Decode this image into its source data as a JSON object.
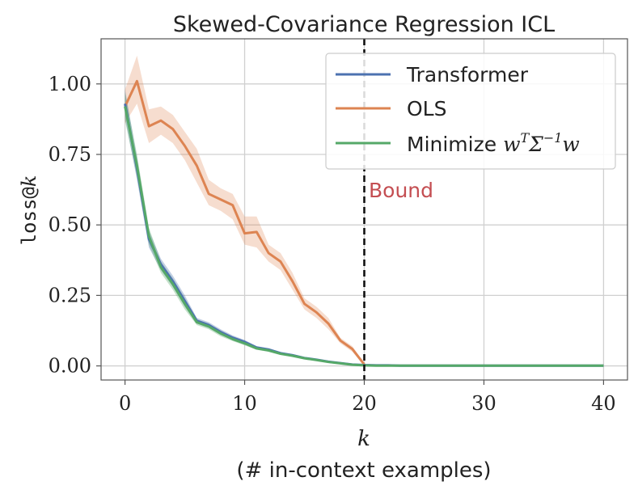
{
  "chart_data": {
    "type": "line",
    "title": "Skewed-Covariance Regression ICL",
    "xlabel": "k",
    "xlabel_sub": "(# in-context examples)",
    "ylabel_main": "loss@",
    "ylabel_var": "k",
    "xlim": [
      -2,
      42
    ],
    "ylim": [
      -0.05,
      1.16
    ],
    "xticks": [
      0,
      10,
      20,
      30,
      40
    ],
    "xtick_labels": [
      "0",
      "10",
      "20",
      "30",
      "40"
    ],
    "yticks": [
      0,
      0.25,
      0.5,
      0.75,
      1.0
    ],
    "ytick_labels": [
      "0.00",
      "0.25",
      "0.50",
      "0.75",
      "1.00"
    ],
    "grid": true,
    "legend_position": "top-right",
    "bound": {
      "x": 20,
      "label": "Bound",
      "color": "#c44e52"
    },
    "series": [
      {
        "name": "Transformer",
        "color": "#4c72b0",
        "x": [
          0,
          1,
          2,
          3,
          4,
          5,
          6,
          7,
          8,
          9,
          10,
          11,
          12,
          13,
          14,
          15,
          16,
          17,
          18,
          19,
          20,
          21,
          22,
          23,
          24,
          25,
          26,
          27,
          28,
          29,
          30,
          31,
          32,
          33,
          34,
          35,
          36,
          37,
          38,
          39,
          40
        ],
        "values": [
          0.93,
          0.7,
          0.45,
          0.36,
          0.3,
          0.23,
          0.16,
          0.145,
          0.12,
          0.1,
          0.085,
          0.065,
          0.058,
          0.045,
          0.038,
          0.028,
          0.022,
          0.015,
          0.01,
          0.005,
          0.003,
          0.002,
          0.002,
          0.001,
          0.001,
          0.001,
          0.001,
          0.001,
          0.001,
          0.001,
          0.001,
          0.001,
          0.001,
          0.001,
          0.001,
          0.001,
          0.001,
          0.001,
          0.001,
          0.001,
          0.001
        ],
        "lower": [
          0.88,
          0.66,
          0.42,
          0.34,
          0.28,
          0.21,
          0.15,
          0.135,
          0.11,
          0.092,
          0.078,
          0.06,
          0.053,
          0.041,
          0.034,
          0.025,
          0.019,
          0.013,
          0.008,
          0.004,
          0.002,
          0.001,
          0.001,
          0,
          0,
          0,
          0,
          0,
          0,
          0,
          0,
          0,
          0,
          0,
          0,
          0,
          0,
          0,
          0,
          0,
          0
        ],
        "upper": [
          0.98,
          0.74,
          0.48,
          0.38,
          0.32,
          0.25,
          0.17,
          0.155,
          0.13,
          0.108,
          0.092,
          0.07,
          0.063,
          0.049,
          0.042,
          0.031,
          0.025,
          0.017,
          0.012,
          0.006,
          0.004,
          0.003,
          0.003,
          0.002,
          0.002,
          0.002,
          0.002,
          0.002,
          0.002,
          0.002,
          0.002,
          0.002,
          0.002,
          0.002,
          0.002,
          0.002,
          0.002,
          0.002,
          0.002,
          0.002,
          0.002
        ]
      },
      {
        "name": "OLS",
        "color": "#dd8452",
        "x": [
          0,
          1,
          2,
          3,
          4,
          5,
          6,
          7,
          8,
          9,
          10,
          11,
          12,
          13,
          14,
          15,
          16,
          17,
          18,
          19,
          20
        ],
        "values": [
          0.92,
          1.01,
          0.85,
          0.87,
          0.84,
          0.78,
          0.71,
          0.61,
          0.59,
          0.57,
          0.47,
          0.475,
          0.4,
          0.37,
          0.3,
          0.22,
          0.19,
          0.15,
          0.09,
          0.06,
          0.005
        ],
        "lower": [
          0.86,
          0.93,
          0.79,
          0.82,
          0.79,
          0.73,
          0.65,
          0.57,
          0.55,
          0.52,
          0.43,
          0.42,
          0.37,
          0.34,
          0.27,
          0.2,
          0.17,
          0.13,
          0.08,
          0.05,
          0.0
        ],
        "upper": [
          0.98,
          1.1,
          0.91,
          0.92,
          0.89,
          0.83,
          0.77,
          0.66,
          0.63,
          0.61,
          0.53,
          0.53,
          0.43,
          0.4,
          0.33,
          0.24,
          0.21,
          0.17,
          0.1,
          0.07,
          0.01
        ]
      },
      {
        "name": "Minimize w^T Σ^{-1} w",
        "color": "#55a868",
        "x": [
          0,
          1,
          2,
          3,
          4,
          5,
          6,
          7,
          8,
          9,
          10,
          11,
          12,
          13,
          14,
          15,
          16,
          17,
          18,
          19,
          20,
          21,
          22,
          23,
          24,
          25,
          26,
          27,
          28,
          29,
          30,
          31,
          32,
          33,
          34,
          35,
          36,
          37,
          38,
          39,
          40
        ],
        "values": [
          0.92,
          0.71,
          0.46,
          0.35,
          0.29,
          0.22,
          0.155,
          0.14,
          0.115,
          0.095,
          0.08,
          0.062,
          0.055,
          0.043,
          0.036,
          0.027,
          0.021,
          0.014,
          0.009,
          0.004,
          0.002,
          0.001,
          0.001,
          0.001,
          0.001,
          0.001,
          0.001,
          0.001,
          0.001,
          0.001,
          0.001,
          0.001,
          0.001,
          0.001,
          0.001,
          0.001,
          0.001,
          0.001,
          0.001,
          0.001,
          0.001
        ],
        "lower": [
          0.87,
          0.67,
          0.43,
          0.33,
          0.27,
          0.2,
          0.145,
          0.13,
          0.105,
          0.088,
          0.073,
          0.057,
          0.05,
          0.039,
          0.032,
          0.024,
          0.018,
          0.012,
          0.007,
          0.003,
          0.001,
          0,
          0,
          0,
          0,
          0,
          0,
          0,
          0,
          0,
          0,
          0,
          0,
          0,
          0,
          0,
          0,
          0,
          0,
          0,
          0
        ],
        "upper": [
          0.97,
          0.75,
          0.49,
          0.37,
          0.31,
          0.24,
          0.165,
          0.15,
          0.125,
          0.102,
          0.087,
          0.067,
          0.06,
          0.047,
          0.04,
          0.03,
          0.024,
          0.016,
          0.011,
          0.005,
          0.003,
          0.002,
          0.002,
          0.002,
          0.002,
          0.002,
          0.002,
          0.002,
          0.002,
          0.002,
          0.002,
          0.002,
          0.002,
          0.002,
          0.002,
          0.002,
          0.002,
          0.002,
          0.002,
          0.002,
          0.002
        ]
      }
    ],
    "legend": {
      "entries": [
        {
          "label": "Transformer"
        },
        {
          "label": "OLS"
        },
        {
          "label_prefix": "Minimize ",
          "label_math_w": "w",
          "label_math_sup_T": "T",
          "label_math_sigma": "Σ",
          "label_math_sup_inv": "−1",
          "label_math_w2": "w"
        }
      ]
    }
  }
}
